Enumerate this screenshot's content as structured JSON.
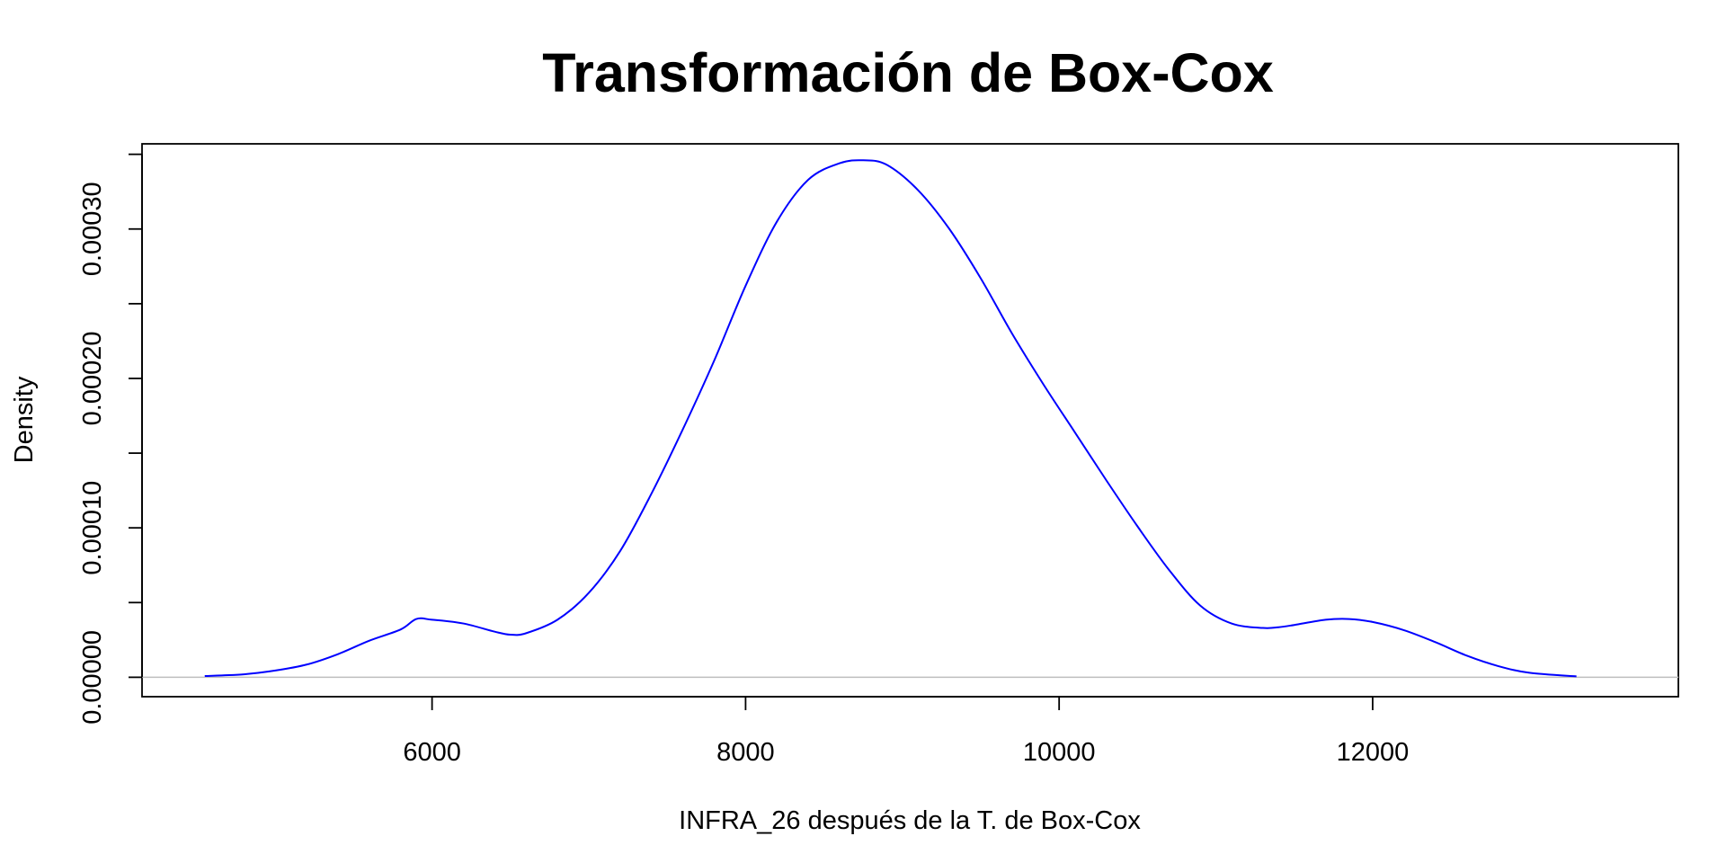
{
  "chart_data": {
    "type": "line",
    "title": "Transformación de Box-Cox",
    "xlabel": "INFRA_26 después de la T. de Box-Cox",
    "ylabel": "Density",
    "xlim": [
      4150,
      13950
    ],
    "ylim": [
      -1.3e-05,
      0.000357
    ],
    "x_ticks": [
      6000,
      8000,
      10000,
      12000
    ],
    "x_tick_labels": [
      "6000",
      "8000",
      "10000",
      "12000"
    ],
    "y_ticks": [
      0,
      5e-05,
      0.0001,
      0.00015,
      0.0002,
      0.00025,
      0.0003,
      0.00035
    ],
    "y_tick_labels": [
      "0.00000",
      "",
      "0.00010",
      "",
      "0.00020",
      "",
      "0.00030",
      ""
    ],
    "grid": false,
    "zero_line": true,
    "series": [
      {
        "color": "#0000ff",
        "x": [
          4550,
          4800,
          5000,
          5200,
          5400,
          5600,
          5800,
          5900,
          6000,
          6200,
          6400,
          6500,
          6600,
          6800,
          7000,
          7200,
          7400,
          7600,
          7800,
          8000,
          8200,
          8400,
          8600,
          8750,
          8900,
          9100,
          9300,
          9500,
          9700,
          9900,
          10100,
          10300,
          10500,
          10700,
          10900,
          11100,
          11300,
          11400,
          11500,
          11700,
          11850,
          12000,
          12200,
          12400,
          12600,
          12800,
          13000,
          13300
        ],
        "y": [
          8e-07,
          2e-06,
          4.5e-06,
          8.5e-06,
          1.55e-05,
          2.45e-05,
          3.2e-05,
          3.9e-05,
          3.85e-05,
          3.6e-05,
          3.05e-05,
          2.85e-05,
          2.95e-05,
          3.85e-05,
          5.65e-05,
          8.45e-05,
          0.000123,
          0.000166,
          0.000212,
          0.000262,
          0.000305,
          0.000333,
          0.000344,
          0.000346,
          0.000343,
          0.000326,
          0.0003,
          0.000267,
          0.00023,
          0.000196,
          0.000164,
          0.000132,
          0.000101,
          7.2e-05,
          4.8e-05,
          3.6e-05,
          3.3e-05,
          3.35e-05,
          3.5e-05,
          3.85e-05,
          3.9e-05,
          3.7e-05,
          3.15e-05,
          2.35e-05,
          1.45e-05,
          7.5e-06,
          3e-06,
          6e-07
        ]
      }
    ]
  }
}
